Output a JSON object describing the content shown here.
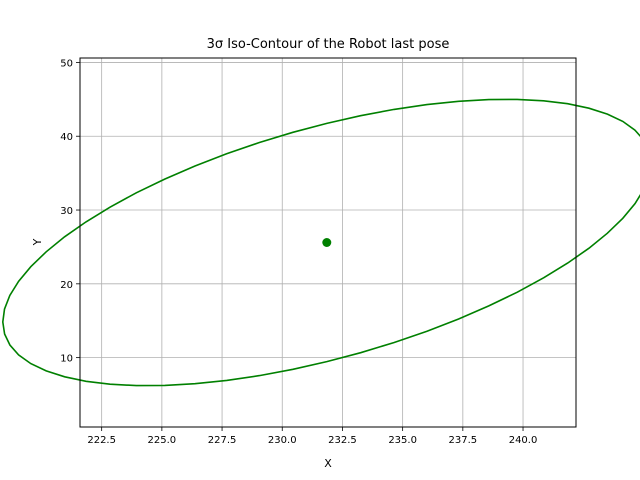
{
  "chart_data": {
    "type": "line",
    "title": "3σ Iso-Contour of the Robot last pose",
    "xlabel": "X",
    "ylabel": "Y",
    "xlim": [
      221.6,
      242.2
    ],
    "ylim": [
      0.6,
      50.6
    ],
    "xticks": [
      222.5,
      225.0,
      227.5,
      230.0,
      232.5,
      235.0,
      237.5,
      240.0
    ],
    "xtick_labels": [
      "222.5",
      "225.0",
      "227.5",
      "230.0",
      "232.5",
      "235.0",
      "237.5",
      "240.0"
    ],
    "yticks": [
      10,
      20,
      30,
      40,
      50
    ],
    "ytick_labels": [
      "10",
      "20",
      "30",
      "40",
      "50"
    ],
    "grid": true,
    "legend": "none",
    "series": [
      {
        "color": "#008000",
        "contour": {
          "center": [
            231.85,
            25.6
          ],
          "semi_major": 10.2,
          "semi_minor": 21.3,
          "rotation_deg": 28
        }
      }
    ],
    "center_point": {
      "x": 231.85,
      "y": 25.6,
      "color": "#008000"
    }
  }
}
